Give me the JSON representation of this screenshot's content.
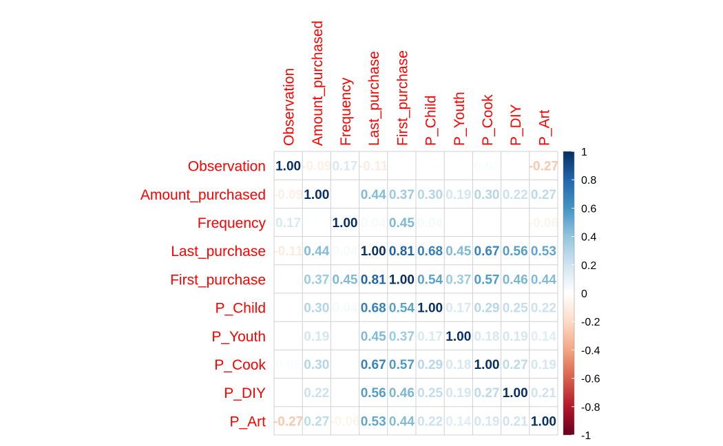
{
  "chart_data": {
    "type": "heatmap",
    "variables": [
      "Observation",
      "Amount_purchased",
      "Frequency",
      "Last_purchase",
      "First_purchase",
      "P_Child",
      "P_Youth",
      "P_Cook",
      "P_DIY",
      "P_Art"
    ],
    "matrix": [
      [
        1.0,
        -0.09,
        0.17,
        -0.11,
        0.01,
        0.01,
        0.0,
        0.02,
        0.0,
        -0.27
      ],
      [
        -0.09,
        1.0,
        0.01,
        0.44,
        0.37,
        0.3,
        0.19,
        0.3,
        0.22,
        0.27
      ],
      [
        0.17,
        0.01,
        1.0,
        0.04,
        0.45,
        0.04,
        0.0,
        0.0,
        0.0,
        -0.06
      ],
      [
        -0.11,
        0.44,
        0.04,
        1.0,
        0.81,
        0.68,
        0.45,
        0.67,
        0.56,
        0.53
      ],
      [
        0.01,
        0.37,
        0.45,
        0.81,
        1.0,
        0.54,
        0.37,
        0.57,
        0.46,
        0.44
      ],
      [
        0.01,
        0.3,
        0.04,
        0.68,
        0.54,
        1.0,
        0.17,
        0.29,
        0.25,
        0.22
      ],
      [
        0.0,
        0.19,
        0.0,
        0.45,
        0.37,
        0.17,
        1.0,
        0.18,
        0.19,
        0.14
      ],
      [
        0.02,
        0.3,
        0.0,
        0.67,
        0.57,
        0.29,
        0.18,
        1.0,
        0.27,
        0.19
      ],
      [
        0.0,
        0.22,
        0.0,
        0.56,
        0.46,
        0.25,
        0.19,
        0.27,
        1.0,
        0.21
      ],
      [
        -0.27,
        0.27,
        -0.06,
        0.53,
        0.44,
        0.22,
        0.14,
        0.19,
        0.21,
        1.0
      ]
    ],
    "value_range": [
      -1,
      1
    ],
    "colorbar_ticks": [
      1,
      0.8,
      0.6,
      0.4,
      0.2,
      0,
      -0.2,
      -0.4,
      -0.6,
      -0.8,
      -1
    ],
    "colorbar_tick_labels": [
      "1",
      "0.8",
      "0.6",
      "0.4",
      "0.2",
      "0",
      "-0.2",
      "-0.4",
      "-0.6",
      "-0.8",
      "-1"
    ],
    "grid": true,
    "legend_position": "right",
    "label_color": "#ff0000",
    "scale_colors": {
      "negative_end": "#67001f",
      "neutral": "#ffffff",
      "positive_end": "#053061"
    },
    "colormap": [
      "#67001F",
      "#B2182B",
      "#D6604D",
      "#F4A582",
      "#FDDBC7",
      "#FFFFFF",
      "#D1E5F0",
      "#92C5DE",
      "#4393C3",
      "#2166AC",
      "#053061"
    ]
  }
}
